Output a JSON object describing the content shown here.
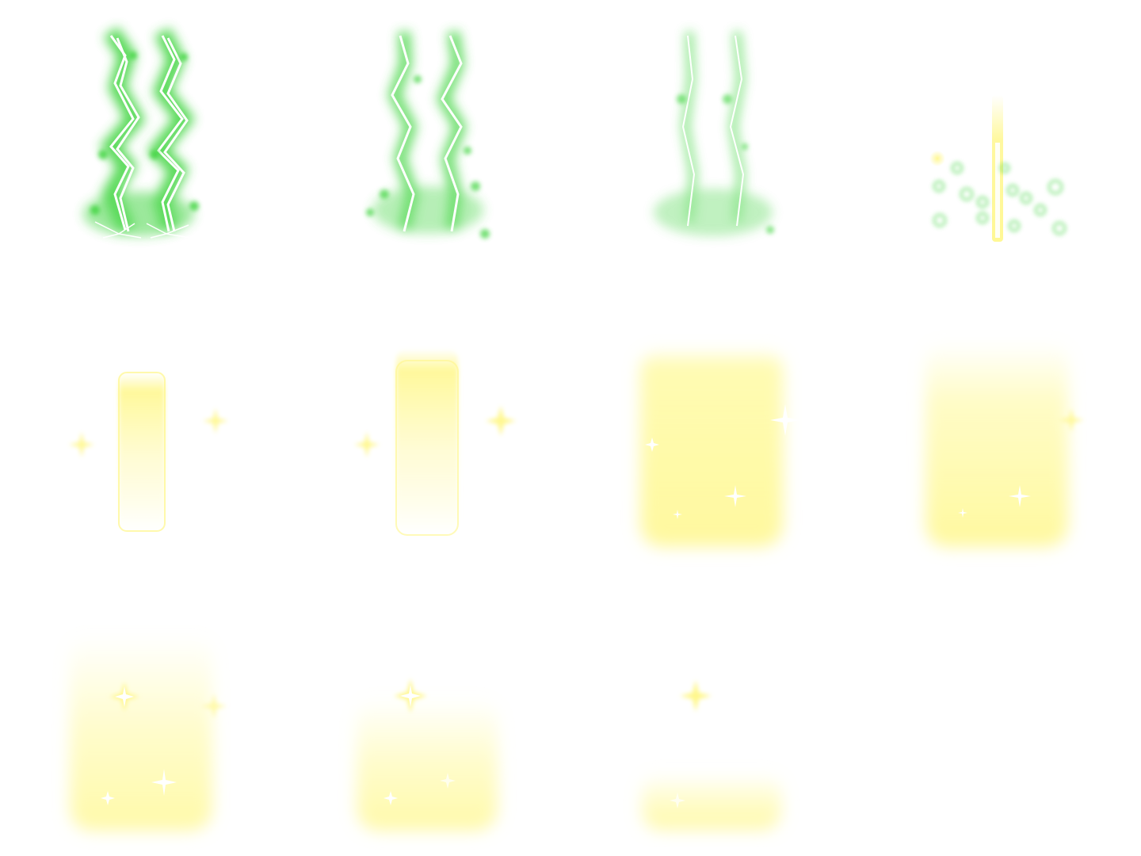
{
  "sprite_sheet": {
    "grid": {
      "rows": 3,
      "columns": 4
    },
    "colors": {
      "background": "#ffffff",
      "lightning_glow": "#3ed43e",
      "lightning_core": "#ffffff",
      "beam_yellow": "#fff78a",
      "beam_pale": "#fffde0",
      "sparkle": "#ffffff"
    },
    "frames": [
      {
        "index": 1,
        "effect": "lightning-bolts",
        "stage": "strike-full",
        "bolt_count": 2,
        "intensity": 1.0
      },
      {
        "index": 2,
        "effect": "lightning-bolts",
        "stage": "strike-thinning",
        "bolt_count": 2,
        "intensity": 0.85
      },
      {
        "index": 3,
        "effect": "lightning-bolts",
        "stage": "strike-fading",
        "bolt_count": 2,
        "intensity": 0.6
      },
      {
        "index": 4,
        "effect": "light-beam",
        "stage": "beam-spawn",
        "bolt_count": 0,
        "intensity": 0.5
      },
      {
        "index": 5,
        "effect": "light-pillar",
        "stage": "pillar-narrow",
        "bolt_count": 0,
        "intensity": 0.55
      },
      {
        "index": 6,
        "effect": "light-pillar",
        "stage": "pillar-widening",
        "bolt_count": 0,
        "intensity": 0.7
      },
      {
        "index": 7,
        "effect": "light-pillar",
        "stage": "pillar-full",
        "bolt_count": 0,
        "intensity": 1.0
      },
      {
        "index": 8,
        "effect": "light-pillar",
        "stage": "pillar-soft-top",
        "bolt_count": 0,
        "intensity": 0.9
      },
      {
        "index": 9,
        "effect": "light-pillar",
        "stage": "pillar-dissolving",
        "bolt_count": 0,
        "intensity": 0.75
      },
      {
        "index": 10,
        "effect": "light-pillar",
        "stage": "pillar-shrinking",
        "bolt_count": 0,
        "intensity": 0.6
      },
      {
        "index": 11,
        "effect": "light-pillar",
        "stage": "pillar-remnant",
        "bolt_count": 0,
        "intensity": 0.35
      },
      {
        "index": 12,
        "effect": "empty",
        "stage": "blank",
        "bolt_count": 0,
        "intensity": 0.0
      }
    ]
  }
}
